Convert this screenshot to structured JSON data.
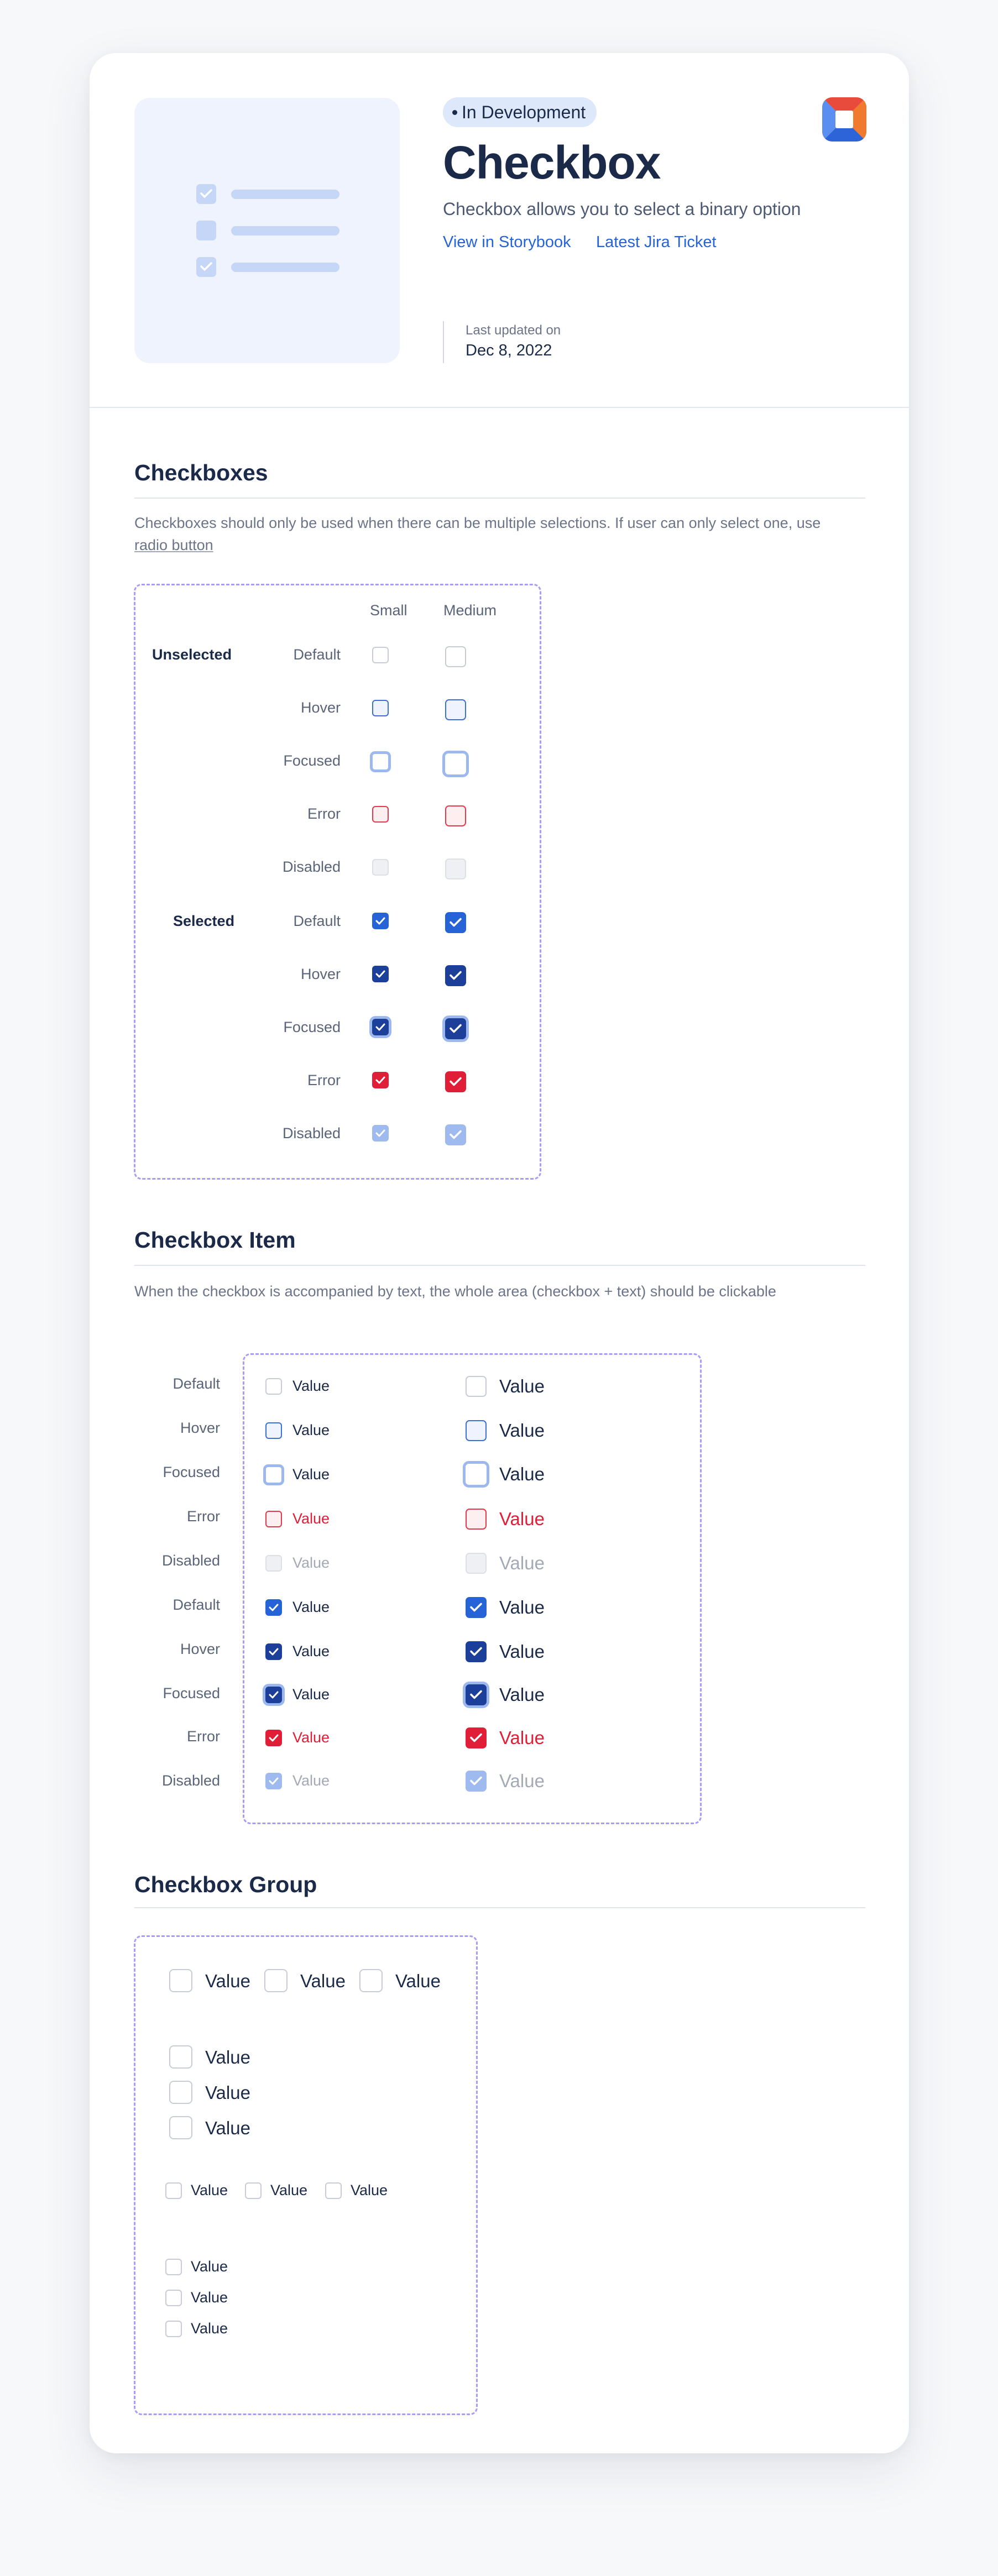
{
  "header": {
    "status": "In Development",
    "title": "Checkbox",
    "subtitle": "Checkbox allows you to select a binary option",
    "links": [
      "View in Storybook",
      "Latest Jira Ticket"
    ],
    "updated_label": "Last updated on",
    "updated_date": "Dec 8, 2022"
  },
  "checkboxes": {
    "title": "Checkboxes",
    "desc_part1": "Checkboxes should only be used when there can be multiple selections. If user can only select one, use",
    "desc_part2": "radio button",
    "col_small": "Small",
    "col_medium": "Medium",
    "group_unselected": "Unselected",
    "group_selected": "Selected",
    "states": [
      "Default",
      "Hover",
      "Focused",
      "Error",
      "Disabled"
    ]
  },
  "checkbox_item": {
    "title": "Checkbox Item",
    "desc": "When the checkbox is accompanied by text, the whole area (checkbox + text) should be clickable",
    "rows": [
      "Default",
      "Hover",
      "Focused",
      "Error",
      "Disabled",
      "Default",
      "Hover",
      "Focused",
      "Error",
      "Disabled"
    ],
    "value": "Value"
  },
  "checkbox_group": {
    "title": "Checkbox Group",
    "value": "Value"
  },
  "colors": {
    "primary": "#2563d6",
    "primary_dark": "#1c3f9a",
    "error": "#e01e38",
    "disabled_checked": "#9fbaee",
    "frame_dashed": "#a99cf5"
  }
}
